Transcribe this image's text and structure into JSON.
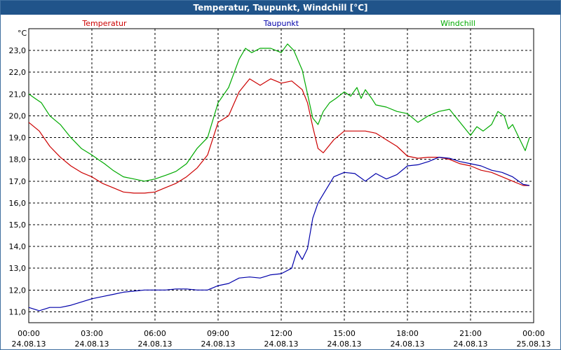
{
  "window": {
    "title": "Temperatur, Taupunkt, Windchill [°C]"
  },
  "chart_data": {
    "type": "line",
    "title": "Temperatur, Taupunkt, Windchill [°C]",
    "ylabel": "°C",
    "xlabel": "",
    "ylim": [
      10.5,
      24.0
    ],
    "xlim": [
      0,
      24
    ],
    "grid": true,
    "legend_placement": "top",
    "y_ticks": [
      {
        "v": 11,
        "label": "11,0"
      },
      {
        "v": 12,
        "label": "12,0"
      },
      {
        "v": 13,
        "label": "13,0"
      },
      {
        "v": 14,
        "label": "14,0"
      },
      {
        "v": 15,
        "label": "15,0"
      },
      {
        "v": 16,
        "label": "16,0"
      },
      {
        "v": 17,
        "label": "17,0"
      },
      {
        "v": 18,
        "label": "18,0"
      },
      {
        "v": 19,
        "label": "19,0"
      },
      {
        "v": 20,
        "label": "20,0"
      },
      {
        "v": 21,
        "label": "21,0"
      },
      {
        "v": 22,
        "label": "22,0"
      },
      {
        "v": 23,
        "label": "23,0"
      }
    ],
    "x_ticks": [
      {
        "v": 0,
        "time": "00:00",
        "date": "24.08.13"
      },
      {
        "v": 3,
        "time": "03:00",
        "date": "24.08.13"
      },
      {
        "v": 6,
        "time": "06:00",
        "date": "24.08.13"
      },
      {
        "v": 9,
        "time": "09:00",
        "date": "24.08.13"
      },
      {
        "v": 12,
        "time": "12:00",
        "date": "24.08.13"
      },
      {
        "v": 15,
        "time": "15:00",
        "date": "24.08.13"
      },
      {
        "v": 18,
        "time": "18:00",
        "date": "24.08.13"
      },
      {
        "v": 21,
        "time": "21:00",
        "date": "24.08.13"
      },
      {
        "v": 24,
        "time": "00:00",
        "date": "25.08.13"
      }
    ],
    "series": [
      {
        "name": "Temperatur",
        "color": "#cc0000",
        "x": [
          0,
          0.5,
          1,
          1.5,
          2,
          2.5,
          3,
          3.5,
          4,
          4.5,
          5,
          5.5,
          6,
          6.5,
          7,
          7.5,
          8,
          8.5,
          9,
          9.5,
          10,
          10.5,
          11,
          11.5,
          12,
          12.5,
          13,
          13.25,
          13.5,
          13.75,
          14,
          14.5,
          15,
          15.5,
          16,
          16.5,
          17,
          17.5,
          18,
          18.5,
          19,
          19.5,
          20,
          20.5,
          21,
          21.5,
          22,
          22.5,
          23,
          23.5,
          23.8
        ],
        "y": [
          19.7,
          19.3,
          18.6,
          18.1,
          17.7,
          17.4,
          17.2,
          16.9,
          16.7,
          16.5,
          16.45,
          16.45,
          16.5,
          16.7,
          16.9,
          17.2,
          17.6,
          18.2,
          19.7,
          20.0,
          21.1,
          21.7,
          21.4,
          21.7,
          21.5,
          21.6,
          21.2,
          20.6,
          19.5,
          18.5,
          18.3,
          18.9,
          19.3,
          19.3,
          19.3,
          19.2,
          18.9,
          18.6,
          18.15,
          18.05,
          18.1,
          18.1,
          18.0,
          17.8,
          17.7,
          17.5,
          17.4,
          17.2,
          17.0,
          16.8,
          16.8
        ]
      },
      {
        "name": "Taupunkt",
        "color": "#0000aa",
        "x": [
          0,
          0.5,
          1,
          1.5,
          2,
          2.5,
          3,
          3.5,
          4,
          4.5,
          5,
          5.5,
          6,
          6.5,
          7,
          7.5,
          8,
          8.5,
          9,
          9.5,
          10,
          10.5,
          11,
          11.5,
          12,
          12.5,
          12.75,
          13,
          13.25,
          13.5,
          13.75,
          14,
          14.5,
          15,
          15.5,
          16,
          16.5,
          17,
          17.5,
          18,
          18.5,
          19,
          19.5,
          20,
          20.5,
          21,
          21.5,
          22,
          22.5,
          23,
          23.5,
          23.8
        ],
        "y": [
          11.2,
          11.05,
          11.2,
          11.2,
          11.3,
          11.45,
          11.6,
          11.7,
          11.8,
          11.9,
          11.95,
          12.0,
          12.0,
          12.0,
          12.05,
          12.05,
          12.0,
          12.0,
          12.2,
          12.3,
          12.55,
          12.6,
          12.55,
          12.7,
          12.75,
          13.0,
          13.8,
          13.4,
          13.9,
          15.3,
          16.0,
          16.4,
          17.2,
          17.4,
          17.35,
          17.0,
          17.35,
          17.1,
          17.3,
          17.7,
          17.75,
          17.9,
          18.1,
          18.05,
          17.9,
          17.8,
          17.7,
          17.5,
          17.4,
          17.2,
          16.85,
          16.8
        ]
      },
      {
        "name": "Windchill",
        "color": "#00aa00",
        "x": [
          0,
          0.3,
          0.6,
          1,
          1.5,
          2,
          2.5,
          3,
          3.3,
          3.6,
          4,
          4.5,
          5,
          5.5,
          6,
          6.3,
          6.6,
          7,
          7.5,
          8,
          8.5,
          9,
          9.5,
          10,
          10.3,
          10.6,
          11,
          11.5,
          12,
          12.3,
          12.6,
          13,
          13.25,
          13.5,
          13.75,
          14,
          14.3,
          14.6,
          15,
          15.3,
          15.6,
          15.8,
          16,
          16.3,
          16.5,
          17,
          17.5,
          18,
          18.5,
          19,
          19.5,
          20,
          20.5,
          21,
          21.3,
          21.6,
          22,
          22.3,
          22.6,
          22.8,
          23,
          23.3,
          23.6,
          23.8
        ],
        "y": [
          21.0,
          20.8,
          20.6,
          20.0,
          19.6,
          19.0,
          18.5,
          18.2,
          18.0,
          17.8,
          17.5,
          17.2,
          17.1,
          17.0,
          17.1,
          17.2,
          17.3,
          17.45,
          17.8,
          18.5,
          19.0,
          20.6,
          21.3,
          22.6,
          23.1,
          22.9,
          23.1,
          23.1,
          22.9,
          23.3,
          23.0,
          22.1,
          21.0,
          19.9,
          19.6,
          20.2,
          20.6,
          20.8,
          21.1,
          20.9,
          21.3,
          20.8,
          21.2,
          20.8,
          20.5,
          20.4,
          20.2,
          20.1,
          19.7,
          20.0,
          20.2,
          20.3,
          19.7,
          19.1,
          19.5,
          19.3,
          19.6,
          20.2,
          20.0,
          19.4,
          19.6,
          19.0,
          18.4,
          19.0
        ]
      }
    ]
  }
}
